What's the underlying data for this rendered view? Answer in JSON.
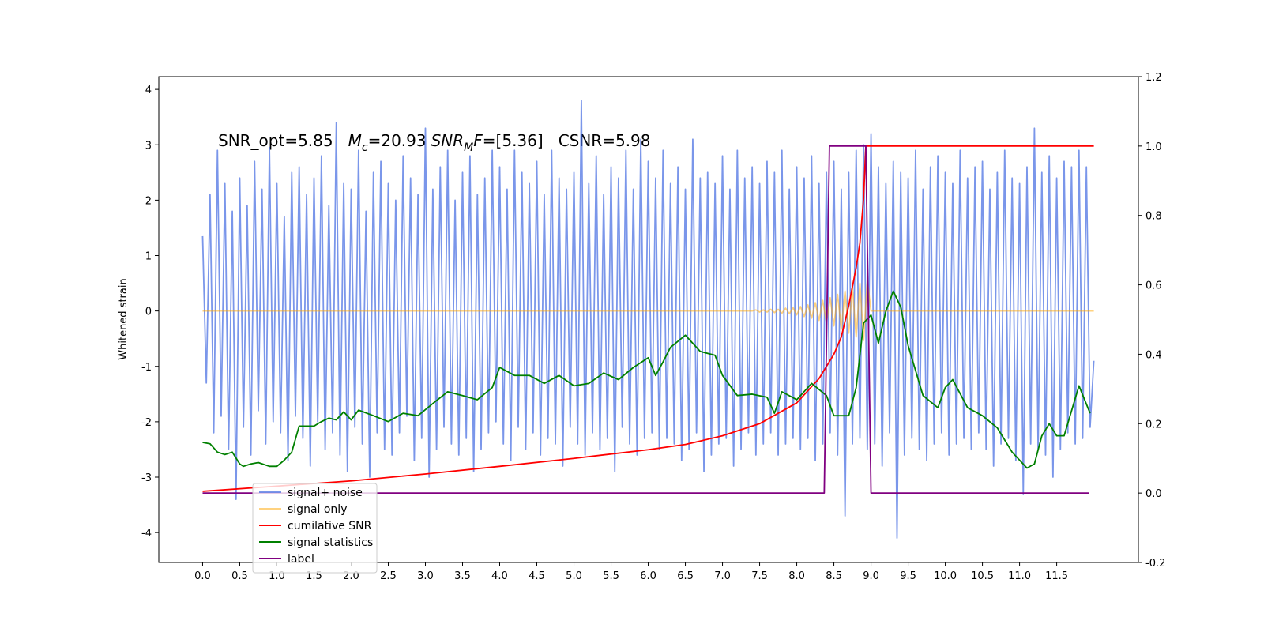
{
  "chart_data": {
    "type": "line",
    "annotation": [
      "SNR_opt=5.85",
      "M",
      "c",
      "=20.93",
      "SNR",
      "M",
      "F",
      "=[5.36]",
      "CSNR=5.98"
    ],
    "ylabel": "Whitened strain",
    "xlim": [
      -0.59,
      12.6
    ],
    "ylim": [
      -4.54,
      4.23
    ],
    "y2lim": [
      -0.2,
      1.2
    ],
    "xticks": [
      {
        "value": 0,
        "label": "0.0"
      },
      0.5,
      {
        "value": 1,
        "label": "1.0"
      },
      1.5,
      {
        "value": 2,
        "label": "2.0"
      },
      2.5,
      {
        "value": 3,
        "label": "3.0"
      },
      3.5,
      {
        "value": 4,
        "label": "4.0"
      },
      4.5,
      {
        "value": 5,
        "label": "5.0"
      },
      5.5,
      {
        "value": 6,
        "label": "6.0"
      },
      6.5,
      {
        "value": 7,
        "label": "7.0"
      },
      7.5,
      {
        "value": 8,
        "label": "8.0"
      },
      8.5,
      {
        "value": 9,
        "label": "9.0"
      },
      9.5,
      {
        "value": 10,
        "label": "10.0"
      },
      10.5,
      {
        "value": 11,
        "label": "11.0"
      },
      11.5
    ],
    "yticks": [
      -4,
      -3,
      -2,
      -1,
      0,
      1,
      2,
      3,
      4
    ],
    "y2ticks": [
      -0.2,
      {
        "value": 0,
        "label": "0.0"
      },
      0.2,
      0.4,
      0.6,
      0.8,
      {
        "value": 1,
        "label": "1.0"
      },
      1.2
    ],
    "legend": "lower left",
    "series": [
      {
        "name": "signal+ noise",
        "color": "#4169e1",
        "alpha": 0.7,
        "x": [
          0,
          0.05,
          0.1,
          0.15,
          0.2,
          0.25,
          0.3,
          0.35,
          0.4,
          0.45,
          0.5,
          0.55,
          0.6,
          0.65,
          0.7,
          0.75,
          0.8,
          0.85,
          0.9,
          0.95,
          1,
          1.05,
          1.1,
          1.15,
          1.2,
          1.25,
          1.3,
          1.35,
          1.4,
          1.45,
          1.5,
          1.55,
          1.6,
          1.65,
          1.7,
          1.75,
          1.8,
          1.85,
          1.9,
          1.95,
          2,
          2.05,
          2.1,
          2.15,
          2.2,
          2.25,
          2.3,
          2.35,
          2.4,
          2.45,
          2.5,
          2.55,
          2.6,
          2.65,
          2.7,
          2.75,
          2.8,
          2.85,
          2.9,
          2.95,
          3,
          3.05,
          3.1,
          3.15,
          3.2,
          3.25,
          3.3,
          3.35,
          3.4,
          3.45,
          3.5,
          3.55,
          3.6,
          3.65,
          3.7,
          3.75,
          3.8,
          3.85,
          3.9,
          3.95,
          4,
          4.05,
          4.1,
          4.15,
          4.2,
          4.25,
          4.3,
          4.35,
          4.4,
          4.45,
          4.5,
          4.55,
          4.6,
          4.65,
          4.7,
          4.75,
          4.8,
          4.85,
          4.9,
          4.95,
          5,
          5.05,
          5.1,
          5.15,
          5.2,
          5.25,
          5.3,
          5.35,
          5.4,
          5.45,
          5.5,
          5.55,
          5.6,
          5.65,
          5.7,
          5.75,
          5.8,
          5.85,
          5.9,
          5.95,
          6,
          6.05,
          6.1,
          6.15,
          6.2,
          6.25,
          6.3,
          6.35,
          6.4,
          6.45,
          6.5,
          6.55,
          6.6,
          6.65,
          6.7,
          6.75,
          6.8,
          6.85,
          6.9,
          6.95,
          7,
          7.05,
          7.1,
          7.15,
          7.2,
          7.25,
          7.3,
          7.35,
          7.4,
          7.45,
          7.5,
          7.55,
          7.6,
          7.65,
          7.7,
          7.75,
          7.8,
          7.85,
          7.9,
          7.95,
          8,
          8.05,
          8.1,
          8.15,
          8.2,
          8.25,
          8.3,
          8.35,
          8.4,
          8.45,
          8.5,
          8.55,
          8.6,
          8.65,
          8.7,
          8.75,
          8.8,
          8.85,
          8.9,
          8.95,
          9,
          9.05,
          9.1,
          9.15,
          9.2,
          9.25,
          9.3,
          9.35,
          9.4,
          9.45,
          9.5,
          9.55,
          9.6,
          9.65,
          9.7,
          9.75,
          9.8,
          9.85,
          9.9,
          9.95,
          10,
          10.05,
          10.1,
          10.15,
          10.2,
          10.25,
          10.3,
          10.35,
          10.4,
          10.45,
          10.5,
          10.55,
          10.6,
          10.65,
          10.7,
          10.75,
          10.8,
          10.85,
          10.9,
          10.95,
          11,
          11.05,
          11.1,
          11.15,
          11.2,
          11.25,
          11.3,
          11.35,
          11.4,
          11.45,
          11.5,
          11.55,
          11.6,
          11.65,
          11.7,
          11.75,
          11.8,
          11.85,
          11.9,
          11.95,
          12
        ],
        "values": [
          1.35,
          -1.3,
          2.1,
          -2.2,
          2.9,
          -1.9,
          2.3,
          -2.5,
          1.8,
          -3.4,
          2.4,
          -2.1,
          1.9,
          -2.6,
          2.7,
          -1.8,
          2.2,
          -2.4,
          2.95,
          -2.0,
          2.3,
          -2.2,
          1.7,
          -2.7,
          2.5,
          -1.9,
          2.6,
          -2.3,
          2.1,
          -2.8,
          2.4,
          -2.0,
          2.8,
          -2.5,
          1.9,
          -2.2,
          3.4,
          -2.6,
          2.3,
          -2.9,
          2.2,
          -2.1,
          2.9,
          -2.4,
          1.8,
          -3.0,
          2.5,
          -2.2,
          2.7,
          -2.5,
          2.3,
          -2.6,
          2.0,
          -2.2,
          2.8,
          -1.9,
          2.4,
          -2.7,
          2.1,
          -2.3,
          3.3,
          -3.0,
          2.2,
          -2.5,
          2.6,
          -2.1,
          2.9,
          -2.4,
          2.0,
          -2.6,
          2.5,
          -2.3,
          2.8,
          -2.9,
          2.1,
          -2.5,
          2.4,
          -2.2,
          2.9,
          -2.0,
          2.6,
          -2.4,
          2.2,
          -2.7,
          2.9,
          -2.1,
          2.5,
          -2.5,
          2.3,
          -2.2,
          2.7,
          -2.6,
          2.1,
          -2.3,
          2.9,
          -2.4,
          2.4,
          -2.8,
          2.2,
          -2.1,
          2.5,
          -2.4,
          3.8,
          -2.6,
          2.3,
          -2.2,
          2.8,
          -2.5,
          2.1,
          -2.3,
          2.6,
          -2.9,
          2.4,
          -2.1,
          2.9,
          -2.4,
          2.2,
          -2.6,
          3.1,
          -2.3,
          2.7,
          -2.2,
          2.4,
          -2.5,
          2.9,
          -2.3,
          2.3,
          -2.4,
          2.6,
          -2.7,
          2.2,
          -2.5,
          3.1,
          -2.2,
          2.4,
          -2.9,
          2.5,
          -2.6,
          2.3,
          -2.4,
          2.8,
          -2.3,
          2.2,
          -2.8,
          2.9,
          -2.5,
          2.4,
          -2.2,
          2.6,
          -2.6,
          2.3,
          -2.4,
          2.7,
          -2.2,
          2.5,
          -2.6,
          2.9,
          -2.4,
          2.2,
          -2.3,
          2.6,
          -2.5,
          2.4,
          -2.3,
          2.8,
          -2.7,
          2.3,
          -2.4,
          2.5,
          -2.2,
          2.7,
          -2.6,
          2.2,
          -3.7,
          2.5,
          -2.4,
          2.9,
          -2.3,
          3.0,
          -2.5,
          3.2,
          -2.4,
          2.6,
          -2.8,
          2.3,
          -2.2,
          2.7,
          -4.1,
          2.5,
          -2.6,
          2.4,
          -2.3,
          2.9,
          -2.5,
          2.2,
          -2.7,
          2.6,
          -2.4,
          2.8,
          -2.2,
          2.5,
          -2.6,
          2.3,
          -2.4,
          2.9,
          -2.3,
          2.4,
          -2.5,
          2.6,
          -2.2,
          2.7,
          -2.5,
          2.2,
          -2.8,
          2.5,
          -2.4,
          2.9,
          -2.3,
          2.4,
          -2.7,
          2.3,
          -3.3,
          2.6,
          -2.4,
          3.3,
          -2.5,
          2.5,
          -2.6,
          2.8,
          -3.0,
          2.4,
          -2.5,
          2.7,
          -2.2,
          2.6,
          -2.4,
          2.9,
          -2.3,
          2.6,
          -2.1,
          -0.9
        ]
      },
      {
        "name": "signal only",
        "color": "#ffa500",
        "alpha": 0.5,
        "x": [
          0,
          7.4,
          7.45,
          7.5,
          7.55,
          7.6,
          7.65,
          7.7,
          7.75,
          7.8,
          7.85,
          7.9,
          7.95,
          8,
          8.05,
          8.1,
          8.15,
          8.2,
          8.25,
          8.3,
          8.35,
          8.4,
          8.45,
          8.5,
          8.55,
          8.6,
          8.65,
          8.7,
          8.75,
          8.8,
          8.85,
          8.9,
          8.95,
          9,
          12
        ],
        "values": [
          0,
          0,
          0.02,
          -0.02,
          0.02,
          -0.02,
          0.03,
          -0.03,
          0.03,
          -0.04,
          0.05,
          -0.05,
          0.06,
          -0.07,
          0.08,
          -0.1,
          0.11,
          -0.13,
          0.15,
          -0.17,
          0.19,
          -0.21,
          0.24,
          -0.27,
          0.3,
          -0.33,
          0.36,
          -0.4,
          0.43,
          -0.47,
          0.5,
          -0.53,
          0.56,
          0,
          0
        ]
      },
      {
        "name": "cumilative SNR",
        "color": "#ff0000",
        "axis": "y2",
        "x": [
          0,
          1,
          2,
          3,
          4,
          5,
          6,
          6.5,
          7,
          7.5,
          8,
          8.3,
          8.5,
          8.6,
          8.7,
          8.8,
          8.85,
          8.9,
          8.93,
          12
        ],
        "values": [
          0.005,
          0.02,
          0.035,
          0.055,
          0.077,
          0.1,
          0.125,
          0.14,
          0.165,
          0.2,
          0.26,
          0.33,
          0.4,
          0.45,
          0.54,
          0.65,
          0.72,
          0.85,
          1,
          1
        ]
      },
      {
        "name": "signal statistics",
        "color": "#008000",
        "axis": "y2",
        "x": [
          0,
          0.1,
          0.2,
          0.3,
          0.4,
          0.5,
          0.55,
          0.65,
          0.75,
          0.9,
          1,
          1.1,
          1.2,
          1.3,
          1.5,
          1.6,
          1.7,
          1.8,
          1.9,
          2,
          2.1,
          2.3,
          2.5,
          2.7,
          2.9,
          3.1,
          3.3,
          3.5,
          3.7,
          3.9,
          4,
          4.2,
          4.4,
          4.6,
          4.8,
          5,
          5.2,
          5.4,
          5.6,
          5.8,
          6,
          6.1,
          6.2,
          6.3,
          6.5,
          6.7,
          6.9,
          7,
          7.2,
          7.4,
          7.6,
          7.7,
          7.8,
          8,
          8.2,
          8.4,
          8.5,
          8.7,
          8.8,
          8.9,
          9,
          9.1,
          9.2,
          9.3,
          9.4,
          9.5,
          9.7,
          9.9,
          10,
          10.1,
          10.3,
          10.5,
          10.7,
          10.9,
          11.1,
          11.2,
          11.3,
          11.4,
          11.5,
          11.6,
          11.8,
          11.95
        ],
        "values": [
          0.146,
          0.142,
          0.118,
          0.111,
          0.118,
          0.084,
          0.077,
          0.084,
          0.088,
          0.077,
          0.077,
          0.095,
          0.118,
          0.193,
          0.193,
          0.206,
          0.216,
          0.211,
          0.234,
          0.211,
          0.239,
          0.223,
          0.206,
          0.23,
          0.223,
          0.258,
          0.292,
          0.281,
          0.269,
          0.304,
          0.362,
          0.339,
          0.339,
          0.316,
          0.339,
          0.309,
          0.316,
          0.346,
          0.327,
          0.362,
          0.39,
          0.339,
          0.378,
          0.42,
          0.455,
          0.408,
          0.397,
          0.339,
          0.281,
          0.285,
          0.276,
          0.23,
          0.292,
          0.269,
          0.316,
          0.281,
          0.223,
          0.223,
          0.304,
          0.49,
          0.513,
          0.432,
          0.524,
          0.582,
          0.536,
          0.425,
          0.281,
          0.246,
          0.304,
          0.327,
          0.246,
          0.223,
          0.188,
          0.118,
          0.072,
          0.084,
          0.165,
          0.2,
          0.165,
          0.165,
          0.309,
          0.23
        ]
      },
      {
        "name": "label",
        "color": "#800080",
        "axis": "y2",
        "x": [
          0,
          8.37,
          8.44,
          8.93,
          9.0,
          11.93
        ],
        "values": [
          0,
          0,
          1,
          1,
          0,
          0
        ]
      }
    ]
  }
}
